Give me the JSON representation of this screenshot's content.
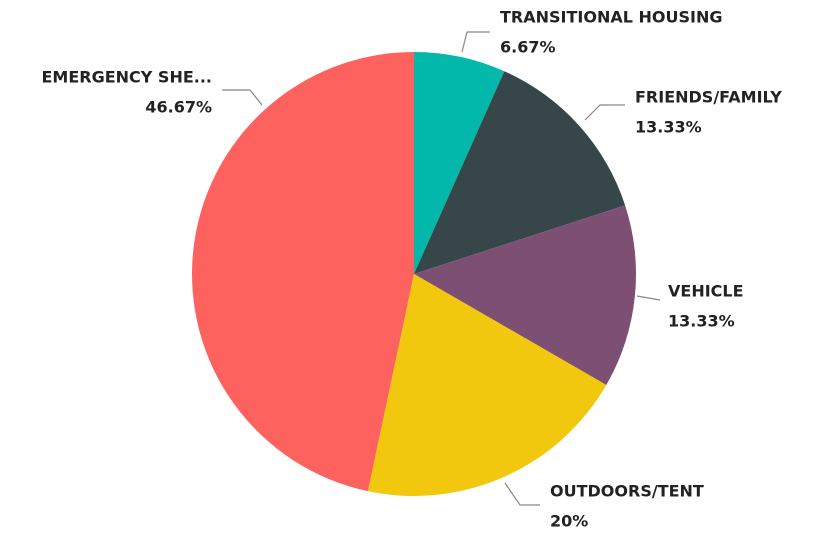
{
  "chart_data": {
    "type": "pie",
    "categories": [
      "TRANSITIONAL HOUSING",
      "FRIENDS/FAMILY",
      "VEHICLE",
      "OUTDOORS/TENT",
      "EMERGENCY SHE..."
    ],
    "values": [
      6.67,
      13.33,
      13.33,
      20,
      46.67
    ],
    "value_labels": [
      "6.67%",
      "13.33%",
      "13.33%",
      "20%",
      "46.67%"
    ],
    "colors": [
      "#01B8AA",
      "#374649",
      "#7D4F73",
      "#F2C80F",
      "#FD625E"
    ]
  }
}
